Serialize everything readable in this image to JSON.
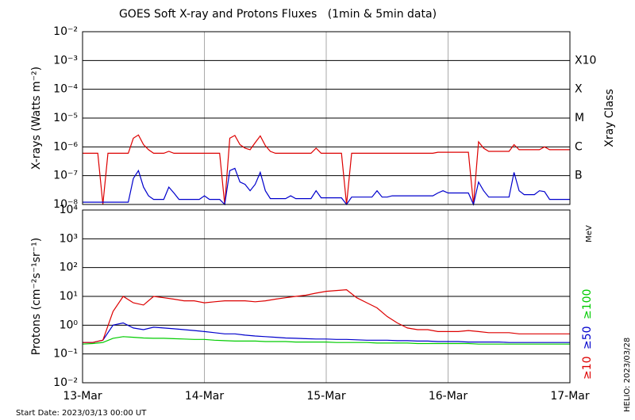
{
  "title": "GOES Soft X-ray and Protons Fluxes   (1min & 5min data)",
  "footer_left": "Start Date: 2023/03/13 00:00 UT",
  "footer_right": "HELIO: 2023/03/28",
  "chart_data": [
    {
      "type": "line",
      "log_y": true,
      "ylabel": "X-rays (Watts m⁻²)",
      "right_axis_label": "Xray Class",
      "xlim": [
        0,
        96
      ],
      "xticks": [
        {
          "value": 0,
          "label": "13-Mar"
        },
        {
          "value": 24,
          "label": "14-Mar"
        },
        {
          "value": 48,
          "label": "15-Mar"
        },
        {
          "value": 72,
          "label": "16-Mar"
        },
        {
          "value": 96,
          "label": "17-Mar"
        }
      ],
      "show_xtick_labels": false,
      "ylim": [
        1e-08,
        0.01
      ],
      "yticks": [
        {
          "value": 1e-08,
          "label": "10⁻⁸"
        },
        {
          "value": 1e-07,
          "label": "10⁻⁷"
        },
        {
          "value": 1e-06,
          "label": "10⁻⁶"
        },
        {
          "value": 1e-05,
          "label": "10⁻⁵"
        },
        {
          "value": 0.0001,
          "label": "10⁻⁴"
        },
        {
          "value": 0.001,
          "label": "10⁻³"
        },
        {
          "value": 0.01,
          "label": "10⁻²"
        }
      ],
      "class_labels": [
        {
          "value": 0.001,
          "label": "X10"
        },
        {
          "value": 0.0001,
          "label": "X"
        },
        {
          "value": 1e-05,
          "label": "M"
        },
        {
          "value": 1e-06,
          "label": "C"
        },
        {
          "value": 1e-07,
          "label": "B"
        }
      ],
      "x": [
        0,
        1,
        2,
        3,
        4,
        5,
        6,
        7,
        8,
        9,
        10,
        11,
        12,
        13,
        14,
        15,
        16,
        17,
        18,
        19,
        20,
        21,
        22,
        23,
        24,
        25,
        26,
        27,
        28,
        29,
        30,
        31,
        32,
        33,
        34,
        35,
        36,
        37,
        38,
        39,
        40,
        41,
        42,
        43,
        44,
        45,
        46,
        47,
        48,
        49,
        50,
        51,
        52,
        53,
        54,
        55,
        56,
        57,
        58,
        59,
        60,
        61,
        62,
        63,
        64,
        65,
        66,
        67,
        68,
        69,
        70,
        71,
        72,
        73,
        74,
        75,
        76,
        77,
        78,
        79,
        80,
        81,
        82,
        83,
        84,
        85,
        86,
        87,
        88,
        89,
        90,
        91,
        92,
        93,
        94,
        95,
        96
      ],
      "series": [
        {
          "color": "#dd0000",
          "values": [
            6e-07,
            6e-07,
            6e-07,
            6e-07,
            1e-08,
            6e-07,
            6e-07,
            6e-07,
            6e-07,
            6e-07,
            2e-06,
            2.6e-06,
            1.2e-06,
            8e-07,
            6e-07,
            6e-07,
            6e-07,
            7e-07,
            6e-07,
            6e-07,
            6e-07,
            6e-07,
            6e-07,
            6e-07,
            6e-07,
            6e-07,
            6e-07,
            6e-07,
            1e-08,
            2e-06,
            2.5e-06,
            1.2e-06,
            9e-07,
            8e-07,
            1.4e-06,
            2.4e-06,
            1.1e-06,
            7e-07,
            6e-07,
            6e-07,
            6e-07,
            6e-07,
            6e-07,
            6e-07,
            6e-07,
            6e-07,
            9e-07,
            6e-07,
            6e-07,
            6e-07,
            6e-07,
            6e-07,
            1e-08,
            6e-07,
            6e-07,
            6e-07,
            6e-07,
            6e-07,
            6e-07,
            6e-07,
            6e-07,
            6e-07,
            6e-07,
            6e-07,
            6e-07,
            6e-07,
            6e-07,
            6e-07,
            6e-07,
            6e-07,
            6.5e-07,
            6.5e-07,
            6.5e-07,
            6.5e-07,
            6.5e-07,
            6.5e-07,
            6.5e-07,
            1e-08,
            1.5e-06,
            9e-07,
            7e-07,
            7e-07,
            7e-07,
            7e-07,
            7e-07,
            1.2e-06,
            8e-07,
            8e-07,
            8e-07,
            8e-07,
            8e-07,
            1e-06,
            8e-07,
            8e-07,
            8e-07,
            8e-07,
            8e-07
          ]
        },
        {
          "color": "#0000cc",
          "values": [
            1.2e-08,
            1.2e-08,
            1.2e-08,
            1.2e-08,
            1.2e-08,
            1.2e-08,
            1.2e-08,
            1.2e-08,
            1.2e-08,
            1.2e-08,
            8e-08,
            1.5e-07,
            4e-08,
            2e-08,
            1.5e-08,
            1.5e-08,
            1.5e-08,
            4e-08,
            2.5e-08,
            1.5e-08,
            1.5e-08,
            1.5e-08,
            1.5e-08,
            1.5e-08,
            2e-08,
            1.5e-08,
            1.5e-08,
            1.5e-08,
            1e-08,
            1.5e-07,
            1.8e-07,
            6e-08,
            5e-08,
            3e-08,
            5e-08,
            1.3e-07,
            3e-08,
            1.6e-08,
            1.6e-08,
            1.6e-08,
            1.6e-08,
            2e-08,
            1.6e-08,
            1.6e-08,
            1.6e-08,
            1.6e-08,
            3e-08,
            1.7e-08,
            1.7e-08,
            1.7e-08,
            1.7e-08,
            1.7e-08,
            1e-08,
            1.8e-08,
            1.8e-08,
            1.8e-08,
            1.8e-08,
            1.8e-08,
            3e-08,
            1.8e-08,
            1.8e-08,
            2e-08,
            2e-08,
            2e-08,
            2e-08,
            2e-08,
            2e-08,
            2e-08,
            2e-08,
            2e-08,
            2.5e-08,
            3e-08,
            2.5e-08,
            2.5e-08,
            2.5e-08,
            2.5e-08,
            2.5e-08,
            1e-08,
            6e-08,
            3e-08,
            1.8e-08,
            1.8e-08,
            1.8e-08,
            1.8e-08,
            1.8e-08,
            1.3e-07,
            3e-08,
            2.2e-08,
            2.2e-08,
            2.2e-08,
            3e-08,
            2.8e-08,
            1.5e-08,
            1.5e-08,
            1.5e-08,
            1.5e-08,
            1.5e-08
          ]
        }
      ]
    },
    {
      "type": "line",
      "log_y": true,
      "ylabel": "Protons (cm⁻²s⁻¹sr⁻¹)",
      "legend_title": "MeV",
      "xlim": [
        0,
        96
      ],
      "xticks": [
        {
          "value": 0,
          "label": "13-Mar"
        },
        {
          "value": 24,
          "label": "14-Mar"
        },
        {
          "value": 48,
          "label": "15-Mar"
        },
        {
          "value": 72,
          "label": "16-Mar"
        },
        {
          "value": 96,
          "label": "17-Mar"
        }
      ],
      "show_xtick_labels": true,
      "ylim": [
        0.01,
        10000.0
      ],
      "yticks": [
        {
          "value": 0.01,
          "label": "10⁻²"
        },
        {
          "value": 0.1,
          "label": "10⁻¹"
        },
        {
          "value": 1,
          "label": "10⁰"
        },
        {
          "value": 10,
          "label": "10¹"
        },
        {
          "value": 100,
          "label": "10²"
        },
        {
          "value": 1000,
          "label": "10³"
        },
        {
          "value": 10000,
          "label": "10⁴"
        }
      ],
      "threshold": 10,
      "x": [
        0,
        2,
        4,
        6,
        8,
        10,
        12,
        14,
        16,
        18,
        20,
        22,
        24,
        26,
        28,
        30,
        32,
        34,
        36,
        38,
        40,
        42,
        44,
        46,
        48,
        50,
        52,
        54,
        56,
        58,
        60,
        62,
        64,
        66,
        68,
        70,
        72,
        74,
        76,
        78,
        80,
        82,
        84,
        86,
        88,
        90,
        92,
        94,
        96
      ],
      "series": [
        {
          "name": "≥100",
          "color": "#00cc00",
          "values": [
            0.22,
            0.23,
            0.25,
            0.35,
            0.4,
            0.38,
            0.36,
            0.35,
            0.35,
            0.34,
            0.33,
            0.32,
            0.32,
            0.3,
            0.29,
            0.28,
            0.28,
            0.28,
            0.27,
            0.27,
            0.27,
            0.26,
            0.26,
            0.26,
            0.26,
            0.25,
            0.25,
            0.25,
            0.25,
            0.24,
            0.24,
            0.24,
            0.24,
            0.23,
            0.23,
            0.23,
            0.23,
            0.23,
            0.23,
            0.22,
            0.22,
            0.22,
            0.22,
            0.22,
            0.22,
            0.22,
            0.22,
            0.22,
            0.22
          ]
        },
        {
          "name": "≥50",
          "color": "#0000cc",
          "values": [
            0.25,
            0.25,
            0.3,
            1.0,
            1.2,
            0.8,
            0.7,
            0.85,
            0.8,
            0.75,
            0.7,
            0.65,
            0.6,
            0.55,
            0.5,
            0.5,
            0.45,
            0.42,
            0.4,
            0.38,
            0.36,
            0.35,
            0.34,
            0.33,
            0.33,
            0.32,
            0.32,
            0.31,
            0.3,
            0.3,
            0.3,
            0.29,
            0.29,
            0.28,
            0.28,
            0.27,
            0.27,
            0.27,
            0.26,
            0.26,
            0.26,
            0.26,
            0.25,
            0.25,
            0.25,
            0.25,
            0.25,
            0.25,
            0.25
          ]
        },
        {
          "name": "≥10",
          "color": "#dd0000",
          "values": [
            0.25,
            0.25,
            0.3,
            3,
            10,
            6,
            5,
            10,
            9,
            8,
            7,
            7,
            6,
            6.5,
            7,
            7,
            7,
            6.5,
            7,
            8,
            9,
            10,
            11,
            13,
            15,
            16,
            17,
            9,
            6,
            4,
            2,
            1.2,
            0.8,
            0.7,
            0.7,
            0.6,
            0.6,
            0.6,
            0.65,
            0.6,
            0.55,
            0.55,
            0.55,
            0.5,
            0.5,
            0.5,
            0.5,
            0.5,
            0.5
          ]
        }
      ]
    }
  ]
}
